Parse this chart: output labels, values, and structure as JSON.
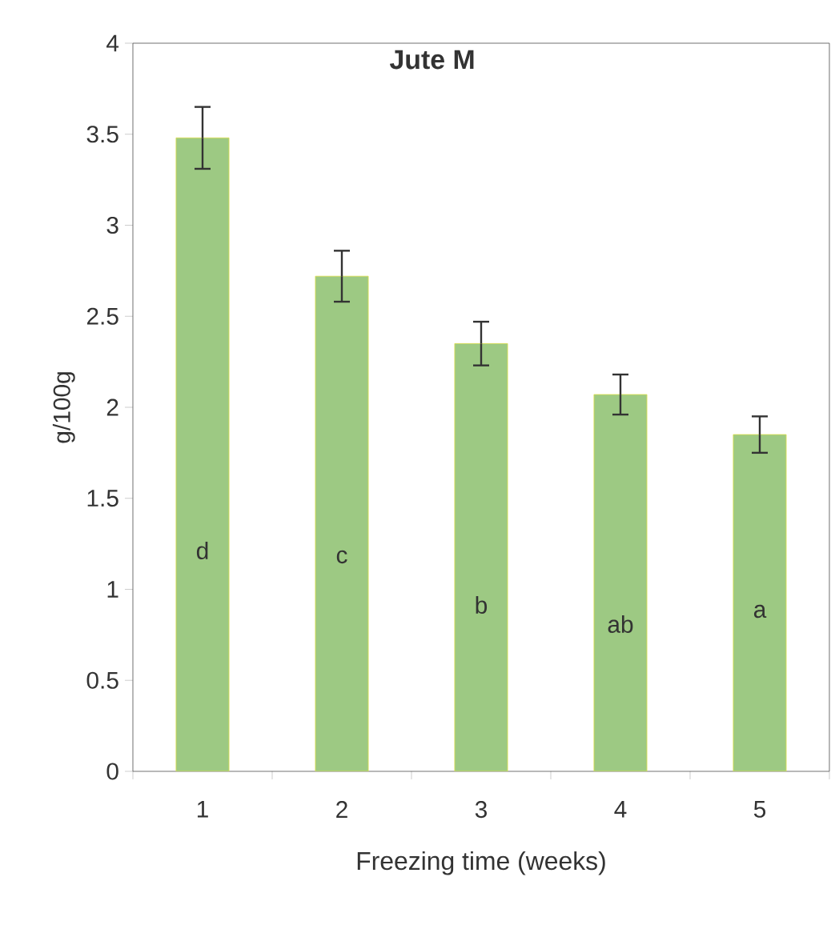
{
  "chart_data": {
    "type": "bar",
    "title": "Jute M",
    "xlabel": "Freezing time (weeks)",
    "ylabel": "g/100g",
    "categories": [
      "1",
      "2",
      "3",
      "4",
      "5"
    ],
    "values": [
      3.48,
      2.72,
      2.35,
      2.07,
      1.85
    ],
    "errors": [
      0.17,
      0.14,
      0.12,
      0.11,
      0.1
    ],
    "color": "#9dc983",
    "ylim": [
      0,
      4
    ],
    "yticks": [
      0,
      0.5,
      1,
      1.5,
      2,
      2.5,
      3,
      3.5,
      4
    ],
    "annotations": [
      "d",
      "c",
      "b",
      "ab",
      "a"
    ]
  }
}
